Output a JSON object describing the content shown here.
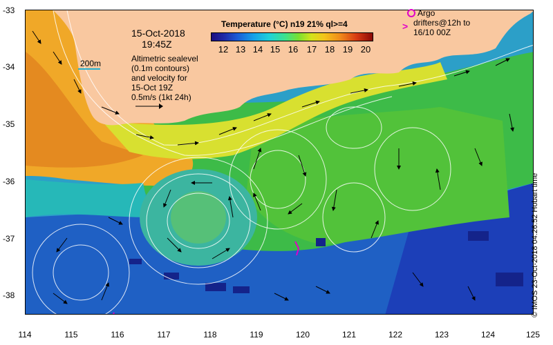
{
  "map": {
    "date": "15-Oct-2018",
    "time": "19:45Z",
    "scale_label": "200m",
    "sealevel_note": [
      "Altimetric sealevel",
      "(0.1m contours)",
      "and velocity for",
      "15-Oct 19Z",
      "0.5m/s (1kt 24h)"
    ],
    "argo_line1": "Argo",
    "argo_line2": "drifters@12h to",
    "argo_line3": "16/10 00Z",
    "credit": "© IMOS 23-Oct-2018 04:26:52 Hobart time",
    "lat_labels": [
      "-33",
      "-34",
      "-35",
      "-36",
      "-37",
      "-38"
    ],
    "lon_labels": [
      "114",
      "115",
      "116",
      "117",
      "118",
      "119",
      "120",
      "121",
      "122",
      "123",
      "124",
      "125"
    ]
  },
  "legend": {
    "title": "Temperature (°C) n19 21% ql>=4",
    "labels": [
      "12",
      "13",
      "14",
      "15",
      "16",
      "17",
      "18",
      "19",
      "20"
    ],
    "colors": {
      "land": "#f9c8a0",
      "warm": "#f4a020",
      "mid": "#40c030",
      "cool": "#22a8c8",
      "cold": "#1a3cc8",
      "argo": "#e000c8"
    }
  }
}
